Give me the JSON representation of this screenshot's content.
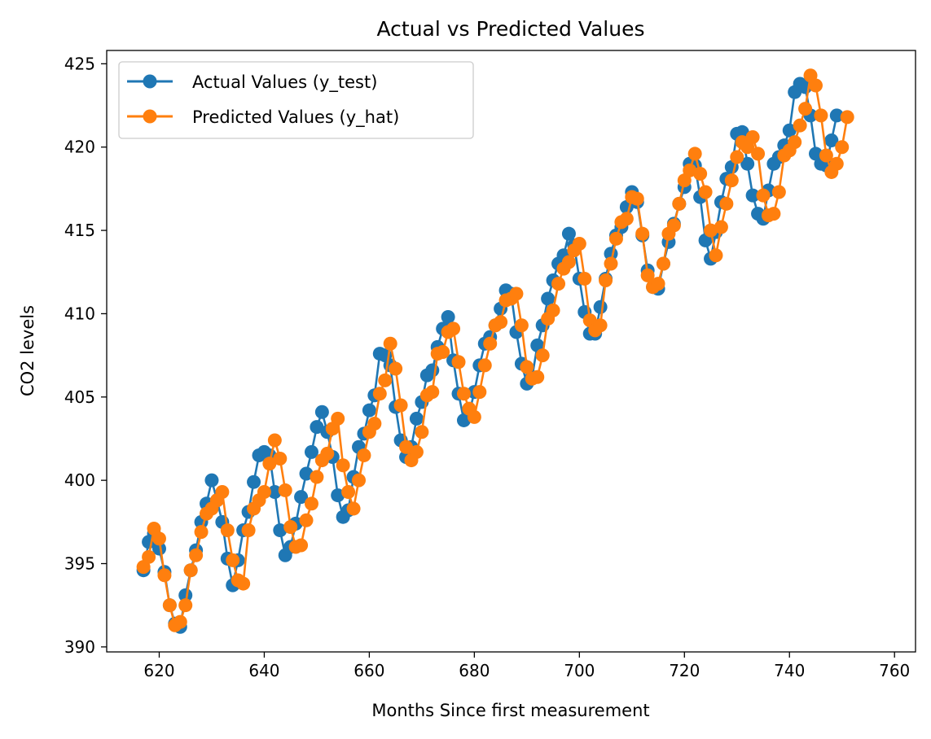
{
  "chart_data": {
    "type": "line",
    "title": "Actual vs Predicted Values",
    "xlabel": "Months Since first measurement",
    "ylabel": "CO2 levels",
    "xlim": [
      610,
      764
    ],
    "ylim": [
      389.7,
      425.8
    ],
    "xticks": [
      620,
      640,
      660,
      680,
      700,
      720,
      740,
      760
    ],
    "yticks": [
      390,
      395,
      400,
      405,
      410,
      415,
      420,
      425
    ],
    "grid": false,
    "legend_position": "top-left",
    "x_start": 617,
    "series": [
      {
        "name": "Actual Values (y_test)",
        "color": "#1f77b4",
        "marker": "circle",
        "values": [
          394.6,
          396.3,
          396.8,
          395.9,
          394.5,
          392.5,
          391.4,
          391.2,
          393.1,
          394.6,
          395.8,
          397.5,
          398.6,
          400.0,
          398.8,
          397.5,
          395.3,
          393.7,
          395.2,
          397.0,
          398.1,
          399.9,
          401.5,
          401.7,
          401.5,
          399.3,
          397.0,
          395.5,
          396.0,
          397.4,
          399.0,
          400.4,
          401.7,
          403.2,
          404.1,
          402.9,
          401.4,
          399.1,
          397.8,
          398.2,
          400.2,
          402.0,
          402.8,
          404.2,
          405.1,
          407.6,
          407.5,
          406.9,
          404.4,
          402.4,
          401.4,
          402.0,
          403.7,
          404.7,
          406.3,
          406.6,
          408.0,
          409.1,
          409.8,
          407.2,
          405.2,
          403.6,
          404.0,
          405.3,
          406.9,
          408.2,
          408.6,
          409.3,
          410.3,
          411.4,
          411.2,
          408.9,
          407.0,
          405.8,
          406.2,
          408.1,
          409.3,
          410.9,
          412.0,
          413.0,
          413.5,
          414.8,
          414.1,
          412.1,
          410.1,
          408.8,
          408.8,
          410.4,
          412.1,
          413.6,
          414.7,
          415.2,
          416.4,
          417.3,
          416.7,
          414.7,
          412.6,
          411.6,
          411.5,
          413.0,
          414.3,
          415.4,
          416.6,
          417.6,
          419.0,
          418.9,
          417.0,
          414.4,
          413.3,
          414.9,
          416.7,
          418.1,
          418.8,
          420.8,
          420.9,
          419.0,
          417.1,
          416.0,
          415.7,
          417.4,
          419.0,
          419.4,
          420.1,
          421.0,
          423.3,
          423.8,
          423.6,
          421.9,
          419.6,
          419.0,
          418.9,
          420.4,
          421.9
        ]
      },
      {
        "name": "Predicted Values (y_hat)",
        "color": "#ff7f0e",
        "marker": "circle",
        "values": [
          394.8,
          395.4,
          397.1,
          396.5,
          394.3,
          392.5,
          391.3,
          391.5,
          392.5,
          394.6,
          395.5,
          396.9,
          398.0,
          398.3,
          398.8,
          399.3,
          397.0,
          395.2,
          394.0,
          393.8,
          397.0,
          398.3,
          398.8,
          399.3,
          401.0,
          402.4,
          401.3,
          399.4,
          397.2,
          396.0,
          396.1,
          397.6,
          398.6,
          400.2,
          401.2,
          401.6,
          403.1,
          403.7,
          400.9,
          399.3,
          398.3,
          400.0,
          401.5,
          402.9,
          403.4,
          405.2,
          406.0,
          408.2,
          406.7,
          404.5,
          402.0,
          401.2,
          401.7,
          402.9,
          405.1,
          405.3,
          407.6,
          407.7,
          408.9,
          409.1,
          407.1,
          405.2,
          404.3,
          403.8,
          405.3,
          406.9,
          408.2,
          409.3,
          409.5,
          410.8,
          410.9,
          411.2,
          409.3,
          406.8,
          406.1,
          406.2,
          407.5,
          409.7,
          410.2,
          411.8,
          412.7,
          413.1,
          413.8,
          414.2,
          412.1,
          409.6,
          409.0,
          409.3,
          412.0,
          413.0,
          414.5,
          415.5,
          415.7,
          417.0,
          416.9,
          414.8,
          412.3,
          411.6,
          411.8,
          413.0,
          414.8,
          415.3,
          416.6,
          418.0,
          418.6,
          419.6,
          418.4,
          417.3,
          415.0,
          413.5,
          415.2,
          416.6,
          418.0,
          419.4,
          420.3,
          420.0,
          420.6,
          419.6,
          417.1,
          415.9,
          416.0,
          417.3,
          419.5,
          419.8,
          420.3,
          421.3,
          422.3,
          424.3,
          423.7,
          421.9,
          419.5,
          418.5,
          419.0,
          420.0,
          421.8
        ]
      }
    ]
  }
}
